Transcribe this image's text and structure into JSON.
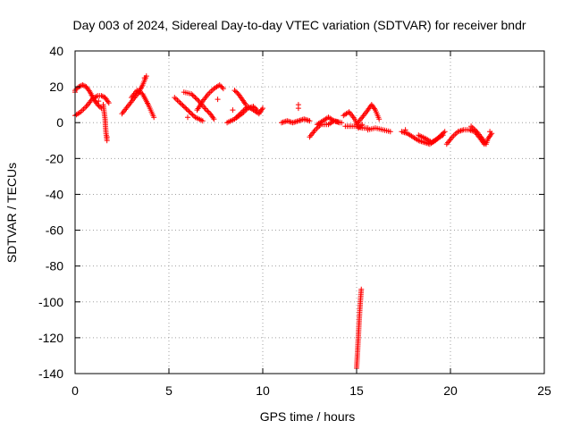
{
  "chart_data": {
    "type": "scatter",
    "title": "Day 003 of 2024, Sidereal Day-to-day VTEC variation (SDTVAR) for receiver bndr",
    "xlabel": "GPS time / hours",
    "ylabel": "SDTVAR / TECUs",
    "xlim": [
      0,
      25
    ],
    "ylim": [
      -140,
      40
    ],
    "xticks": [
      0,
      5,
      10,
      15,
      20,
      25
    ],
    "yticks": [
      -140,
      -120,
      -100,
      -80,
      -60,
      -40,
      -20,
      0,
      20,
      40
    ],
    "grid": true,
    "marker": "plus",
    "color": "#ff0000",
    "series": [
      {
        "name": "SDTVAR",
        "tracks": [
          [
            [
              0.0,
              18
            ],
            [
              0.2,
              20
            ],
            [
              0.4,
              21
            ],
            [
              0.6,
              20
            ],
            [
              0.8,
              17
            ],
            [
              1.0,
              13
            ],
            [
              1.2,
              10
            ],
            [
              1.4,
              8
            ]
          ],
          [
            [
              0.0,
              4
            ],
            [
              0.3,
              6
            ],
            [
              0.6,
              9
            ],
            [
              0.9,
              13
            ],
            [
              1.2,
              15
            ],
            [
              1.4,
              15
            ],
            [
              1.6,
              14
            ],
            [
              1.8,
              11
            ]
          ],
          [
            [
              1.5,
              10
            ],
            [
              1.55,
              6
            ],
            [
              1.6,
              2
            ],
            [
              1.62,
              -2
            ],
            [
              1.65,
              -6
            ],
            [
              1.7,
              -10
            ]
          ],
          [
            [
              2.5,
              5
            ],
            [
              2.8,
              9
            ],
            [
              3.1,
              13
            ],
            [
              3.4,
              17
            ],
            [
              3.6,
              21
            ],
            [
              3.8,
              26
            ]
          ],
          [
            [
              3.0,
              14
            ],
            [
              3.3,
              18
            ],
            [
              3.6,
              16
            ],
            [
              3.9,
              10
            ],
            [
              4.2,
              3
            ]
          ],
          [
            [
              5.3,
              14
            ],
            [
              5.6,
              11
            ],
            [
              6.0,
              7
            ],
            [
              6.4,
              3
            ],
            [
              6.8,
              1
            ]
          ],
          [
            [
              5.8,
              17
            ],
            [
              6.2,
              16
            ],
            [
              6.6,
              12
            ],
            [
              7.0,
              7
            ],
            [
              7.2,
              5
            ],
            [
              7.4,
              2
            ]
          ],
          [
            [
              6.5,
              7
            ],
            [
              6.8,
              12
            ],
            [
              7.1,
              16
            ],
            [
              7.4,
              19
            ],
            [
              7.7,
              21
            ],
            [
              7.9,
              19
            ]
          ],
          [
            [
              8.1,
              0
            ],
            [
              8.5,
              2
            ],
            [
              8.9,
              5
            ],
            [
              9.2,
              8
            ],
            [
              9.5,
              9
            ],
            [
              9.7,
              7
            ]
          ],
          [
            [
              8.5,
              18
            ],
            [
              8.7,
              16
            ],
            [
              8.9,
              13
            ],
            [
              9.1,
              10
            ]
          ],
          [
            [
              8.6,
              3
            ],
            [
              8.9,
              6
            ],
            [
              9.2,
              9
            ],
            [
              9.5,
              7
            ],
            [
              9.8,
              5
            ],
            [
              10.0,
              8
            ]
          ],
          [
            [
              11.0,
              0
            ],
            [
              11.3,
              1
            ],
            [
              11.6,
              0
            ],
            [
              11.9,
              1
            ],
            [
              12.2,
              2
            ],
            [
              12.5,
              1
            ]
          ],
          [
            [
              12.5,
              -8
            ],
            [
              12.8,
              -4
            ],
            [
              13.1,
              -1
            ],
            [
              13.5,
              -1
            ],
            [
              13.8,
              1
            ],
            [
              14.2,
              0
            ]
          ],
          [
            [
              12.9,
              -1
            ],
            [
              13.2,
              1
            ],
            [
              13.5,
              3
            ],
            [
              13.8,
              1
            ],
            [
              14.1,
              0
            ]
          ],
          [
            [
              14.4,
              -2
            ],
            [
              14.7,
              -2
            ],
            [
              15.0,
              -2
            ],
            [
              15.3,
              -3
            ],
            [
              15.6,
              -3
            ]
          ],
          [
            [
              14.3,
              4
            ],
            [
              14.6,
              6
            ],
            [
              14.9,
              2
            ],
            [
              15.1,
              -3
            ],
            [
              15.3,
              -1
            ]
          ],
          [
            [
              15.0,
              -1
            ],
            [
              15.3,
              3
            ],
            [
              15.6,
              7
            ],
            [
              15.8,
              10
            ],
            [
              16.0,
              7
            ],
            [
              16.2,
              2
            ]
          ],
          [
            [
              15.6,
              -4
            ],
            [
              16.0,
              -3
            ],
            [
              16.4,
              -4
            ],
            [
              16.8,
              -5
            ]
          ],
          [
            [
              15.0,
              -137
            ],
            [
              15.05,
              -128
            ],
            [
              15.1,
              -118
            ],
            [
              15.15,
              -108
            ],
            [
              15.2,
              -100
            ],
            [
              15.25,
              -93
            ]
          ],
          [
            [
              17.4,
              -5
            ],
            [
              17.7,
              -6
            ],
            [
              18.0,
              -8
            ],
            [
              18.3,
              -10
            ],
            [
              18.6,
              -11
            ],
            [
              18.9,
              -12
            ],
            [
              19.2,
              -10
            ],
            [
              19.5,
              -7
            ],
            [
              19.7,
              -5
            ]
          ],
          [
            [
              18.3,
              -7
            ],
            [
              18.7,
              -9
            ],
            [
              19.0,
              -11
            ],
            [
              19.3,
              -9
            ],
            [
              19.6,
              -7
            ]
          ],
          [
            [
              19.8,
              -12
            ],
            [
              20.1,
              -8
            ],
            [
              20.4,
              -5
            ],
            [
              20.7,
              -4
            ],
            [
              21.0,
              -4
            ],
            [
              21.3,
              -5
            ],
            [
              21.6,
              -9
            ],
            [
              21.8,
              -12
            ]
          ],
          [
            [
              21.1,
              -2
            ],
            [
              21.4,
              -5
            ],
            [
              21.7,
              -9
            ],
            [
              21.9,
              -12
            ],
            [
              22.0,
              -9
            ],
            [
              22.2,
              -6
            ]
          ]
        ],
        "points": [
          [
            0.0,
            17
          ],
          [
            1.25,
            12
          ],
          [
            1.7,
            -8
          ],
          [
            3.7,
            25
          ],
          [
            6.0,
            3
          ],
          [
            7.6,
            13
          ],
          [
            8.4,
            7
          ],
          [
            11.9,
            8
          ],
          [
            11.9,
            10
          ],
          [
            17.6,
            -4
          ],
          [
            22.1,
            -5
          ]
        ]
      }
    ]
  }
}
